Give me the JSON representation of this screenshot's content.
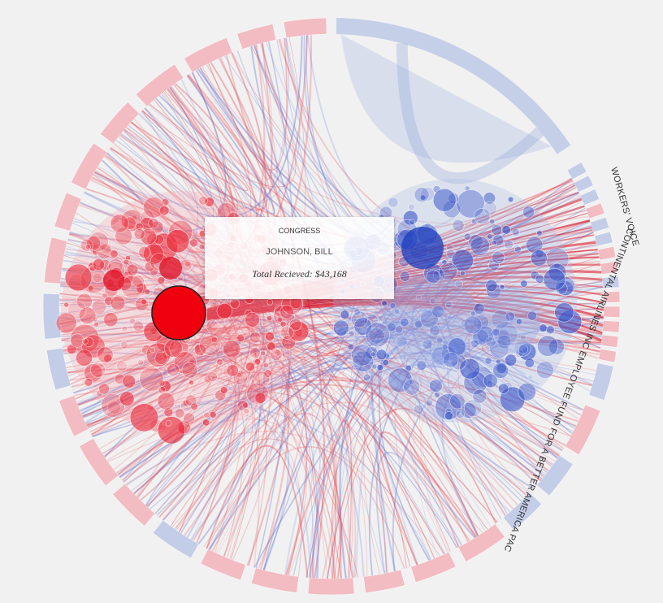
{
  "tooltip": {
    "category": "CONGRESS",
    "name": "JOHNSON, BILL",
    "total_label": "Total Recieved:",
    "total": "$43,168"
  },
  "labels": [
    "WORKERS' VOICE",
    "CONTINENTAL AIRLINES INC EMPLOYEE FUND FOR A BETTER AMERICA PAC"
  ]
}
